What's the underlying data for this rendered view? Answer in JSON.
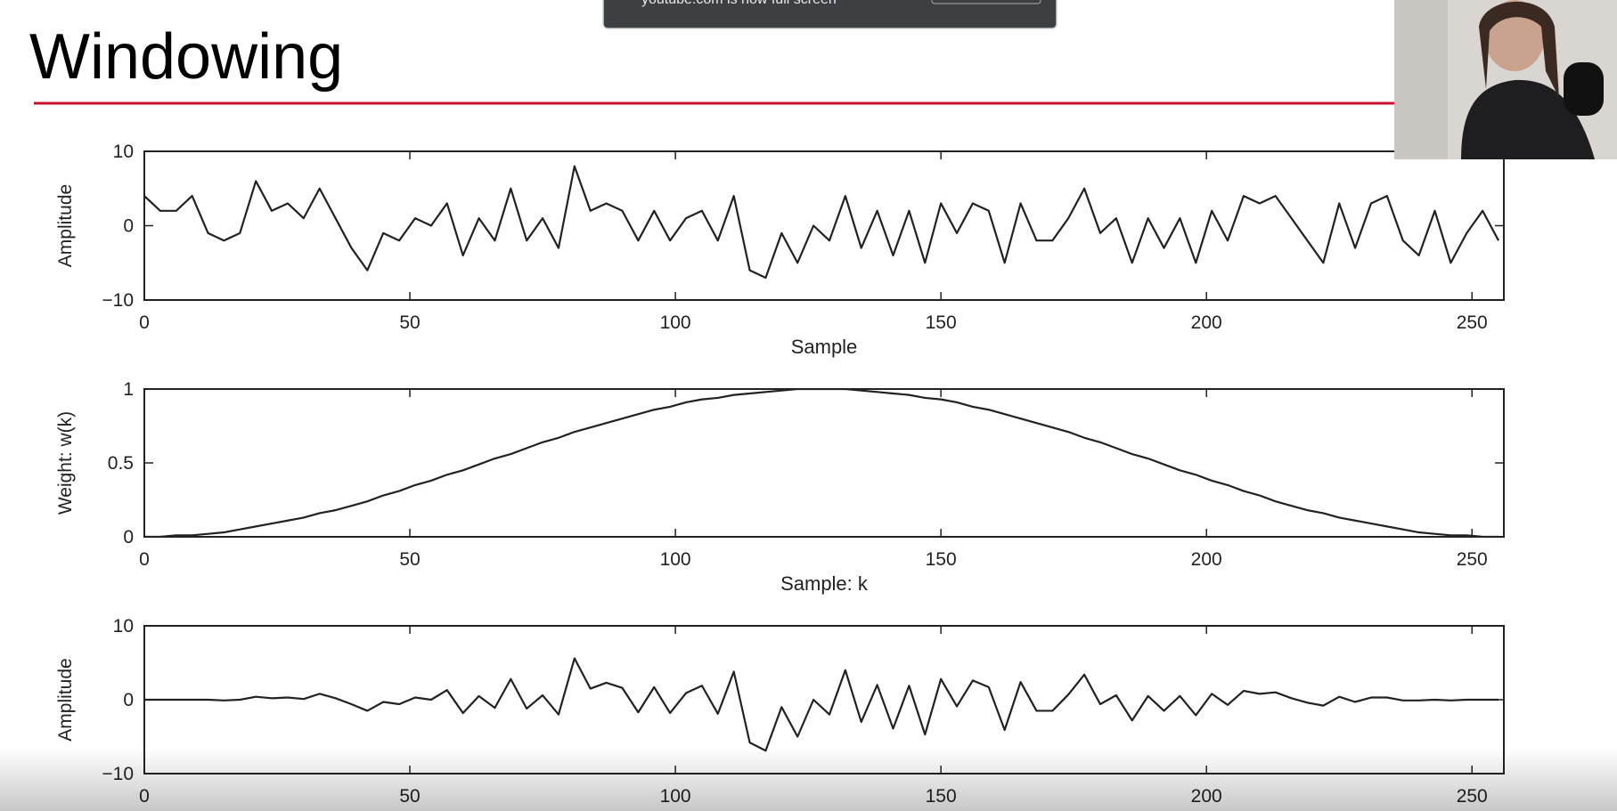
{
  "title": "Windowing",
  "notification": "youtube.com is now full screen",
  "chart_data": [
    {
      "type": "line",
      "ylabel": "Amplitude",
      "xlabel": "Sample",
      "color": "#222222",
      "xlim": [
        0,
        256
      ],
      "xticks": [
        0,
        50,
        100,
        150,
        200,
        250
      ],
      "ylim": [
        -10,
        10
      ],
      "yticks": [
        {
          "value": -10,
          "label": "−10"
        },
        0,
        10
      ],
      "x": [
        0,
        3,
        6,
        9,
        12,
        15,
        18,
        21,
        24,
        27,
        30,
        33,
        36,
        39,
        42,
        45,
        48,
        51,
        54,
        57,
        60,
        63,
        66,
        69,
        72,
        75,
        78,
        81,
        84,
        87,
        90,
        93,
        96,
        99,
        102,
        105,
        108,
        111,
        114,
        117,
        120,
        123,
        126,
        129,
        132,
        135,
        138,
        141,
        144,
        147,
        150,
        153,
        156,
        159,
        162,
        165,
        168,
        171,
        174,
        177,
        180,
        183,
        186,
        189,
        192,
        195,
        198,
        201,
        204,
        207,
        210,
        213,
        216,
        219,
        222,
        225,
        228,
        231,
        234,
        237,
        240,
        243,
        246,
        249,
        252,
        255
      ],
      "values": [
        4,
        2,
        2,
        4,
        -1,
        -2,
        -1,
        6,
        2,
        3,
        1,
        5,
        1,
        -3,
        -6,
        -1,
        -2,
        1,
        0,
        3,
        -4,
        1,
        -2,
        5,
        -2,
        1,
        -3,
        8,
        2,
        3,
        2,
        -2,
        2,
        -2,
        1,
        2,
        -2,
        4,
        -6,
        -7,
        -1,
        -5,
        0,
        -2,
        4,
        -3,
        2,
        -4,
        2,
        -5,
        3,
        -1,
        3,
        2,
        -5,
        3,
        -2,
        -2,
        1,
        5,
        -1,
        1,
        -5,
        1,
        -3,
        1,
        -5,
        2,
        -2,
        4,
        3,
        4,
        1,
        -2,
        -5,
        3,
        -3,
        3,
        4,
        -2,
        -4,
        2,
        -5,
        -1,
        2,
        -2
      ]
    },
    {
      "type": "line",
      "ylabel": "Weight: w(k)",
      "xlabel": "Sample: k",
      "color": "#222222",
      "xlim": [
        0,
        256
      ],
      "xticks": [
        0,
        50,
        100,
        150,
        200,
        250
      ],
      "ylim": [
        0,
        1
      ],
      "yticks": [
        0,
        0.5,
        1
      ],
      "x": [
        0,
        3,
        6,
        9,
        12,
        15,
        18,
        21,
        24,
        27,
        30,
        33,
        36,
        39,
        42,
        45,
        48,
        51,
        54,
        57,
        60,
        63,
        66,
        69,
        72,
        75,
        78,
        81,
        84,
        87,
        90,
        93,
        96,
        99,
        102,
        105,
        108,
        111,
        114,
        117,
        120,
        123,
        126,
        129,
        132,
        135,
        138,
        141,
        144,
        147,
        150,
        153,
        156,
        159,
        162,
        165,
        168,
        171,
        174,
        177,
        180,
        183,
        186,
        189,
        192,
        195,
        198,
        201,
        204,
        207,
        210,
        213,
        216,
        219,
        222,
        225,
        228,
        231,
        234,
        237,
        240,
        243,
        246,
        249,
        252,
        255
      ],
      "values": [
        0,
        0,
        0.01,
        0.01,
        0.02,
        0.03,
        0.05,
        0.07,
        0.09,
        0.11,
        0.13,
        0.16,
        0.18,
        0.21,
        0.24,
        0.28,
        0.31,
        0.35,
        0.38,
        0.42,
        0.45,
        0.49,
        0.53,
        0.56,
        0.6,
        0.64,
        0.67,
        0.71,
        0.74,
        0.77,
        0.8,
        0.83,
        0.86,
        0.88,
        0.91,
        0.93,
        0.94,
        0.96,
        0.97,
        0.98,
        0.99,
        1,
        1,
        1,
        1,
        0.99,
        0.98,
        0.97,
        0.96,
        0.94,
        0.93,
        0.91,
        0.88,
        0.86,
        0.83,
        0.8,
        0.77,
        0.74,
        0.71,
        0.67,
        0.64,
        0.6,
        0.56,
        0.53,
        0.49,
        0.45,
        0.42,
        0.38,
        0.35,
        0.31,
        0.28,
        0.24,
        0.21,
        0.18,
        0.16,
        0.13,
        0.11,
        0.09,
        0.07,
        0.05,
        0.03,
        0.02,
        0.01,
        0.01,
        0,
        0
      ]
    },
    {
      "type": "line",
      "ylabel": "Amplitude",
      "color": "#222222",
      "xlim": [
        0,
        256
      ],
      "xticks": [
        0,
        50,
        100,
        150,
        200,
        250
      ],
      "ylim": [
        -10,
        10
      ],
      "yticks": [
        {
          "value": -10,
          "label": "−10"
        },
        0,
        10
      ],
      "x": [
        0,
        3,
        6,
        9,
        12,
        15,
        18,
        21,
        24,
        27,
        30,
        33,
        36,
        39,
        42,
        45,
        48,
        51,
        54,
        57,
        60,
        63,
        66,
        69,
        72,
        75,
        78,
        81,
        84,
        87,
        90,
        93,
        96,
        99,
        102,
        105,
        108,
        111,
        114,
        117,
        120,
        123,
        126,
        129,
        132,
        135,
        138,
        141,
        144,
        147,
        150,
        153,
        156,
        159,
        162,
        165,
        168,
        171,
        174,
        177,
        180,
        183,
        186,
        189,
        192,
        195,
        198,
        201,
        204,
        207,
        210,
        213,
        216,
        219,
        222,
        225,
        228,
        231,
        234,
        237,
        240,
        243,
        246,
        249,
        252,
        255
      ],
      "values": [
        0,
        0,
        0,
        0,
        0,
        -0.1,
        0,
        0.4,
        0.2,
        0.3,
        0.1,
        0.8,
        0.2,
        -0.6,
        -1.5,
        -0.3,
        -0.6,
        0.3,
        0,
        1.3,
        -1.8,
        0.5,
        -1.1,
        2.8,
        -1.2,
        0.6,
        -2,
        5.6,
        1.5,
        2.3,
        1.6,
        -1.7,
        1.7,
        -1.8,
        0.9,
        1.9,
        -1.9,
        3.8,
        -5.8,
        -6.9,
        -1,
        -5,
        0,
        -2,
        4,
        -3,
        2,
        -3.9,
        1.9,
        -4.7,
        2.8,
        -0.9,
        2.6,
        1.7,
        -4.1,
        2.4,
        -1.5,
        -1.5,
        0.7,
        3.4,
        -0.6,
        0.6,
        -2.8,
        0.5,
        -1.5,
        0.5,
        -2.1,
        0.8,
        -0.7,
        1.2,
        0.8,
        1,
        0.2,
        -0.4,
        -0.8,
        0.4,
        -0.3,
        0.3,
        0.3,
        -0.1,
        -0.1,
        0,
        -0.1,
        0,
        0,
        0
      ]
    }
  ]
}
